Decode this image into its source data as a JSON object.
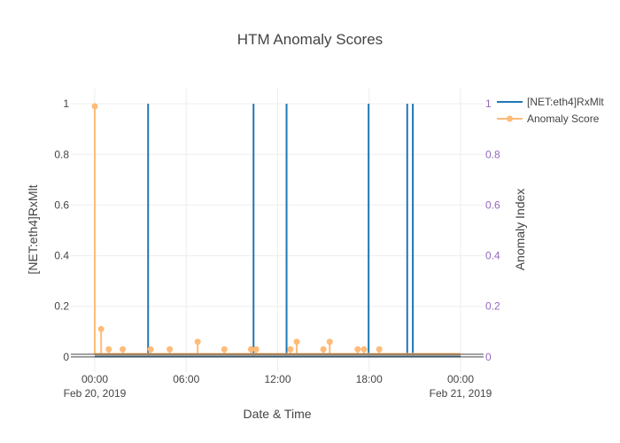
{
  "chart_data": {
    "type": "line",
    "title": "HTM Anomaly Scores",
    "xlabel": "Date & Time",
    "ylabel": "[NET:eth4]RxMlt",
    "ylabel_right": "Anomaly Index",
    "x_range": [
      "2019-02-20 00:00",
      "2019-02-21 00:00"
    ],
    "x_ticks": [
      {
        "time": "2019-02-20 00:00",
        "line1": "00:00",
        "line2": "Feb 20, 2019"
      },
      {
        "time": "2019-02-20 06:00",
        "line1": "06:00",
        "line2": ""
      },
      {
        "time": "2019-02-20 12:00",
        "line1": "12:00",
        "line2": ""
      },
      {
        "time": "2019-02-20 18:00",
        "line1": "18:00",
        "line2": ""
      },
      {
        "time": "2019-02-21 00:00",
        "line1": "00:00",
        "line2": "Feb 21, 2019"
      }
    ],
    "y_left": {
      "range": [
        -0.06,
        1.06
      ],
      "ticks": [
        0,
        0.2,
        0.4,
        0.6,
        0.8,
        1
      ],
      "tick_labels": [
        "0",
        "0.2",
        "0.4",
        "0.6",
        "0.8",
        "1"
      ]
    },
    "y_right": {
      "range": [
        -0.06,
        1.06
      ],
      "ticks": [
        0,
        0.2,
        0.4,
        0.6,
        0.8,
        1
      ],
      "tick_labels": [
        "0",
        "0.2",
        "0.4",
        "0.6",
        "0.8",
        "1"
      ]
    },
    "legend_position": "top-right",
    "grid": true,
    "series": [
      {
        "name": "[NET:eth4]RxMlt",
        "axis": "left",
        "color": "#1f77b4",
        "style": "line",
        "baseline": 0,
        "spikes": [
          {
            "time": "2019-02-20 03:30",
            "value": 1
          },
          {
            "time": "2019-02-20 10:25",
            "value": 1
          },
          {
            "time": "2019-02-20 12:35",
            "value": 1
          },
          {
            "time": "2019-02-20 17:58",
            "value": 1
          },
          {
            "time": "2019-02-20 20:30",
            "value": 1
          },
          {
            "time": "2019-02-20 20:52",
            "value": 1
          }
        ]
      },
      {
        "name": "Anomaly Score",
        "axis": "right",
        "color": "#ffbb78",
        "style": "lines+markers",
        "baseline": 0,
        "points": [
          {
            "time": "2019-02-20 00:00",
            "value": 0.99
          },
          {
            "time": "2019-02-20 00:25",
            "value": 0.11
          },
          {
            "time": "2019-02-20 00:55",
            "value": 0.03
          },
          {
            "time": "2019-02-20 01:50",
            "value": 0.03
          },
          {
            "time": "2019-02-20 03:40",
            "value": 0.03
          },
          {
            "time": "2019-02-20 04:55",
            "value": 0.03
          },
          {
            "time": "2019-02-20 06:45",
            "value": 0.06
          },
          {
            "time": "2019-02-20 08:30",
            "value": 0.03
          },
          {
            "time": "2019-02-20 10:15",
            "value": 0.03
          },
          {
            "time": "2019-02-20 10:35",
            "value": 0.03
          },
          {
            "time": "2019-02-20 12:50",
            "value": 0.03
          },
          {
            "time": "2019-02-20 13:15",
            "value": 0.06
          },
          {
            "time": "2019-02-20 15:00",
            "value": 0.03
          },
          {
            "time": "2019-02-20 15:25",
            "value": 0.06
          },
          {
            "time": "2019-02-20 17:15",
            "value": 0.03
          },
          {
            "time": "2019-02-20 17:40",
            "value": 0.03
          },
          {
            "time": "2019-02-20 18:40",
            "value": 0.03
          }
        ]
      }
    ]
  },
  "colors": {
    "right_axis": "#9467bd",
    "grid": "#eeeeee",
    "text": "#444444"
  }
}
